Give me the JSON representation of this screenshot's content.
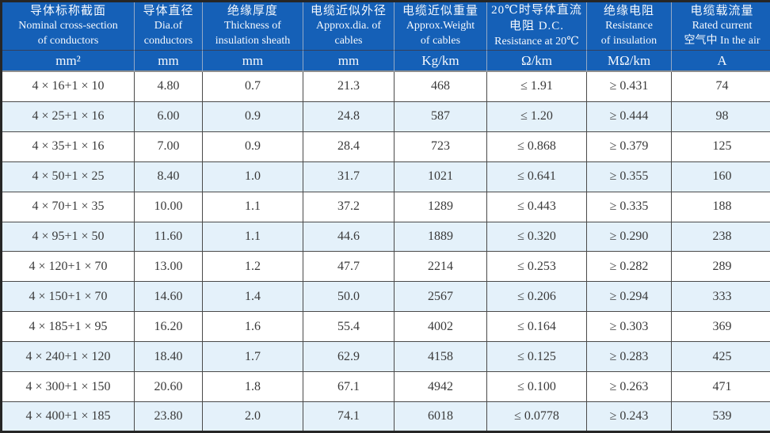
{
  "table": {
    "columns": [
      {
        "lines": [
          "导体标称截面",
          "Nominal cross-section",
          "of conductors"
        ],
        "unit": "mm²"
      },
      {
        "lines": [
          "导体直径",
          "Dia.of",
          "conductors"
        ],
        "unit": "mm"
      },
      {
        "lines": [
          "绝缘厚度",
          "Thickness of",
          "insulation sheath"
        ],
        "unit": "mm"
      },
      {
        "lines": [
          "电缆近似外径",
          "Approx.dia. of",
          "cables"
        ],
        "unit": "mm"
      },
      {
        "lines": [
          "电缆近似重量",
          "Approx.Weight",
          "of cables"
        ],
        "unit": "Kg/km"
      },
      {
        "lines": [
          "20℃时导体直流",
          "电阻 D.C.",
          "Resistance at 20℃"
        ],
        "unit": "Ω/km"
      },
      {
        "lines": [
          "绝缘电阻",
          "Resistance",
          "of insulation"
        ],
        "unit": "MΩ/km"
      },
      {
        "lines": [
          "电缆载流量",
          "Rated current",
          "空气中 In the air"
        ],
        "unit": "A"
      }
    ],
    "rows": [
      [
        "4 × 16+1 × 10",
        "4.80",
        "0.7",
        "21.3",
        "468",
        "≤ 1.91",
        "≥ 0.431",
        "74"
      ],
      [
        "4 × 25+1 × 16",
        "6.00",
        "0.9",
        "24.8",
        "587",
        "≤ 1.20",
        "≥ 0.444",
        "98"
      ],
      [
        "4 × 35+1 × 16",
        "7.00",
        "0.9",
        "28.4",
        "723",
        "≤ 0.868",
        "≥ 0.379",
        "125"
      ],
      [
        "4 × 50+1 × 25",
        "8.40",
        "1.0",
        "31.7",
        "1021",
        "≤ 0.641",
        "≥ 0.355",
        "160"
      ],
      [
        "4 × 70+1 × 35",
        "10.00",
        "1.1",
        "37.2",
        "1289",
        "≤ 0.443",
        "≥ 0.335",
        "188"
      ],
      [
        "4 × 95+1 × 50",
        "11.60",
        "1.1",
        "44.6",
        "1889",
        "≤ 0.320",
        "≥ 0.290",
        "238"
      ],
      [
        "4 × 120+1 × 70",
        "13.00",
        "1.2",
        "47.7",
        "2214",
        "≤ 0.253",
        "≥ 0.282",
        "289"
      ],
      [
        "4 × 150+1 × 70",
        "14.60",
        "1.4",
        "50.0",
        "2567",
        "≤ 0.206",
        "≥ 0.294",
        "333"
      ],
      [
        "4 × 185+1 × 95",
        "16.20",
        "1.6",
        "55.4",
        "4002",
        "≤ 0.164",
        "≥ 0.303",
        "369"
      ],
      [
        "4 × 240+1 × 120",
        "18.40",
        "1.7",
        "62.9",
        "4158",
        "≤ 0.125",
        "≥ 0.283",
        "425"
      ],
      [
        "4 × 300+1 × 150",
        "20.60",
        "1.8",
        "67.1",
        "4942",
        "≤ 0.100",
        "≥ 0.263",
        "471"
      ],
      [
        "4 × 400+1 × 185",
        "23.80",
        "2.0",
        "74.1",
        "6018",
        "≤ 0.0778",
        "≥ 0.243",
        "539"
      ]
    ]
  },
  "colors": {
    "header_bg": "#1560b7",
    "header_text": "#f4f8fd",
    "row_alt_bg": "#e4f1fa",
    "border_inner": "#4a4a4a",
    "border_outer": "#262626",
    "body_text": "#3a3a3a"
  }
}
